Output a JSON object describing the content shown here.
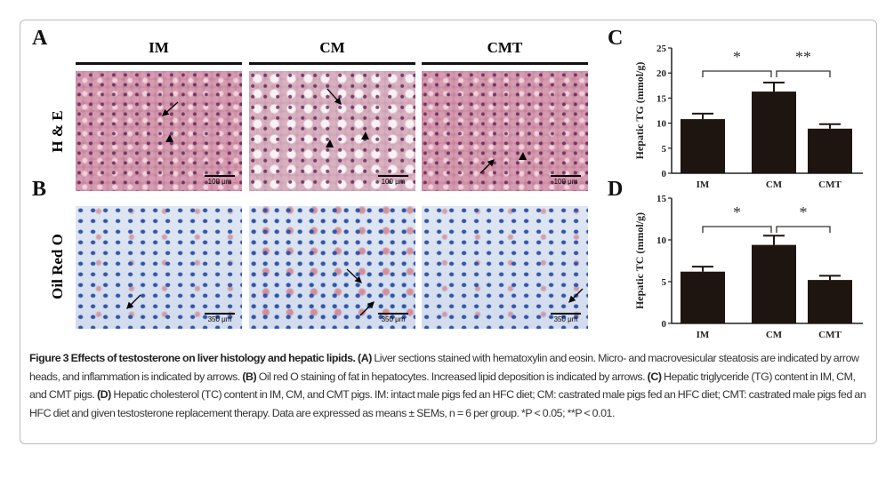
{
  "panels": {
    "A": "A",
    "B": "B",
    "C": "C",
    "D": "D"
  },
  "columns": [
    "IM",
    "CM",
    "CMT"
  ],
  "rows": [
    "H & E",
    "Oil Red O"
  ],
  "scalebars": {
    "he": "100 μm",
    "oro": "350 μm"
  },
  "chart_data": [
    {
      "type": "bar",
      "panel": "C",
      "ylabel": "Hepatic TG (mmol/g)",
      "categories": [
        "IM",
        "CM",
        "CMT"
      ],
      "values": [
        10.8,
        16.3,
        8.9
      ],
      "errors": [
        1.1,
        1.8,
        0.9
      ],
      "ylim": [
        0,
        25
      ],
      "yticks": [
        0,
        5,
        10,
        15,
        20,
        25
      ],
      "significance": [
        {
          "pair": [
            "IM",
            "CM"
          ],
          "label": "*"
        },
        {
          "pair": [
            "CM",
            "CMT"
          ],
          "label": "**"
        }
      ],
      "bar_color": "#1e1410"
    },
    {
      "type": "bar",
      "panel": "D",
      "ylabel": "Hepatic TC (mmol/g)",
      "categories": [
        "IM",
        "CM",
        "CMT"
      ],
      "values": [
        6.2,
        9.4,
        5.2
      ],
      "errors": [
        0.6,
        1.1,
        0.5
      ],
      "ylim": [
        0,
        15
      ],
      "yticks": [
        0,
        5,
        10,
        15
      ],
      "significance": [
        {
          "pair": [
            "IM",
            "CM"
          ],
          "label": "*"
        },
        {
          "pair": [
            "CM",
            "CMT"
          ],
          "label": "*"
        }
      ],
      "bar_color": "#1e1410"
    }
  ],
  "caption": {
    "title": "Figure 3 Effects of testosterone on liver histology and hepatic lipids.",
    "a_label": "(A)",
    "a_text": " Liver sections stained with hematoxylin and eosin. Micro- and macrovesicular steatosis are indicated by arrow heads, and inflammation is indicated by arrows. ",
    "b_label": "(B)",
    "b_text": " Oil red O staining of fat in hepatocytes. Increased lipid deposition is indicated by arrows. ",
    "c_label": "(C)",
    "c_text": " Hepatic triglyceride (TG) content in IM, CM, and CMT pigs. ",
    "d_label": "(D)",
    "d_text": " Hepatic cholesterol (TC) content in IM, CM, and CMT pigs. IM: intact male pigs fed an HFC diet; CM: castrated male pigs fed an HFC diet; CMT: castrated male pigs fed an HFC diet and given testosterone replacement therapy. Data are expressed as means ± SEMs, n = 6 per group. *P < 0.05; **P < 0.01."
  }
}
